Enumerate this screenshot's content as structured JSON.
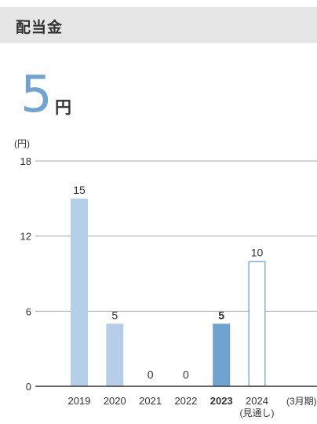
{
  "header": {
    "title": "配当金"
  },
  "kpi": {
    "value": "5",
    "unit": "円"
  },
  "colors": {
    "bar": "#b5cfe8",
    "bar_highlight": "#6fa3d2",
    "bar_forecast_fill": "#ffffff",
    "bar_forecast_stroke": "#6fa3d2",
    "grid": "#a8a8a8",
    "axis": "#333333",
    "text": "#333333"
  },
  "chart_data": {
    "type": "bar",
    "title": "",
    "ylabel": "(円)",
    "xlabel": "",
    "x_unit_note": "(3月期)",
    "ylim": [
      0,
      18
    ],
    "yticks": [
      0,
      6,
      12,
      18
    ],
    "grid": true,
    "categories": [
      "2019",
      "2020",
      "2021",
      "2022",
      "2023",
      "2024"
    ],
    "category_sublabels": [
      "",
      "",
      "",
      "",
      "",
      "(見通し)"
    ],
    "values": [
      15,
      5,
      0,
      0,
      5,
      10
    ],
    "data_labels": [
      "15",
      "5",
      "0",
      "0",
      "5",
      "10"
    ],
    "highlight_index": 4,
    "forecast_index": 5
  }
}
